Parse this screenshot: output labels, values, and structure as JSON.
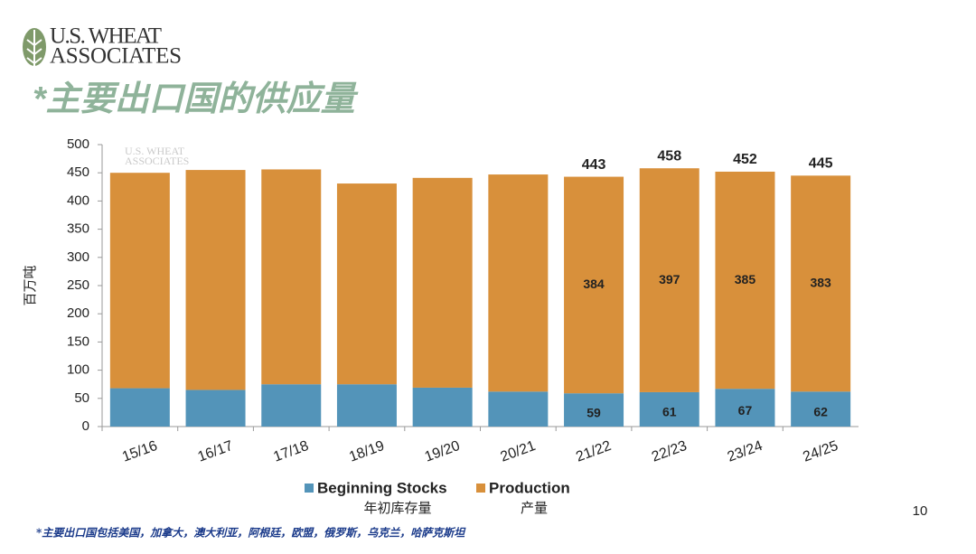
{
  "logo": {
    "line1": "U.S. WHEAT",
    "line2": "ASSOCIATES"
  },
  "title": "*主要出口国的供应量",
  "chart_data": {
    "type": "stacked-bar",
    "y_label": "百万吨",
    "categories": [
      "15/16",
      "16/17",
      "17/18",
      "18/19",
      "19/20",
      "20/21",
      "21/22",
      "22/23",
      "23/24",
      "24/25"
    ],
    "series": [
      {
        "name": "Beginning Stocks",
        "name_zh": "年初库存量",
        "color": "#5394b9",
        "values": [
          68,
          65,
          75,
          75,
          69,
          62,
          59,
          61,
          67,
          62
        ]
      },
      {
        "name": "Production",
        "name_zh": "产量",
        "color": "#d8903b",
        "values": [
          382,
          390,
          381,
          356,
          372,
          385,
          384,
          397,
          385,
          383
        ]
      }
    ],
    "totals": [
      null,
      null,
      null,
      null,
      null,
      null,
      443,
      458,
      452,
      445
    ],
    "ylim": [
      0,
      500
    ],
    "yticks": [
      0,
      50,
      100,
      150,
      200,
      250,
      300,
      350,
      400,
      450,
      500
    ],
    "grid": false
  },
  "footnote": "*主要出口国包括美国，加拿大，澳大利亚，阿根廷，欧盟，俄罗斯，乌克兰，哈萨克斯坦",
  "page_number": "10"
}
